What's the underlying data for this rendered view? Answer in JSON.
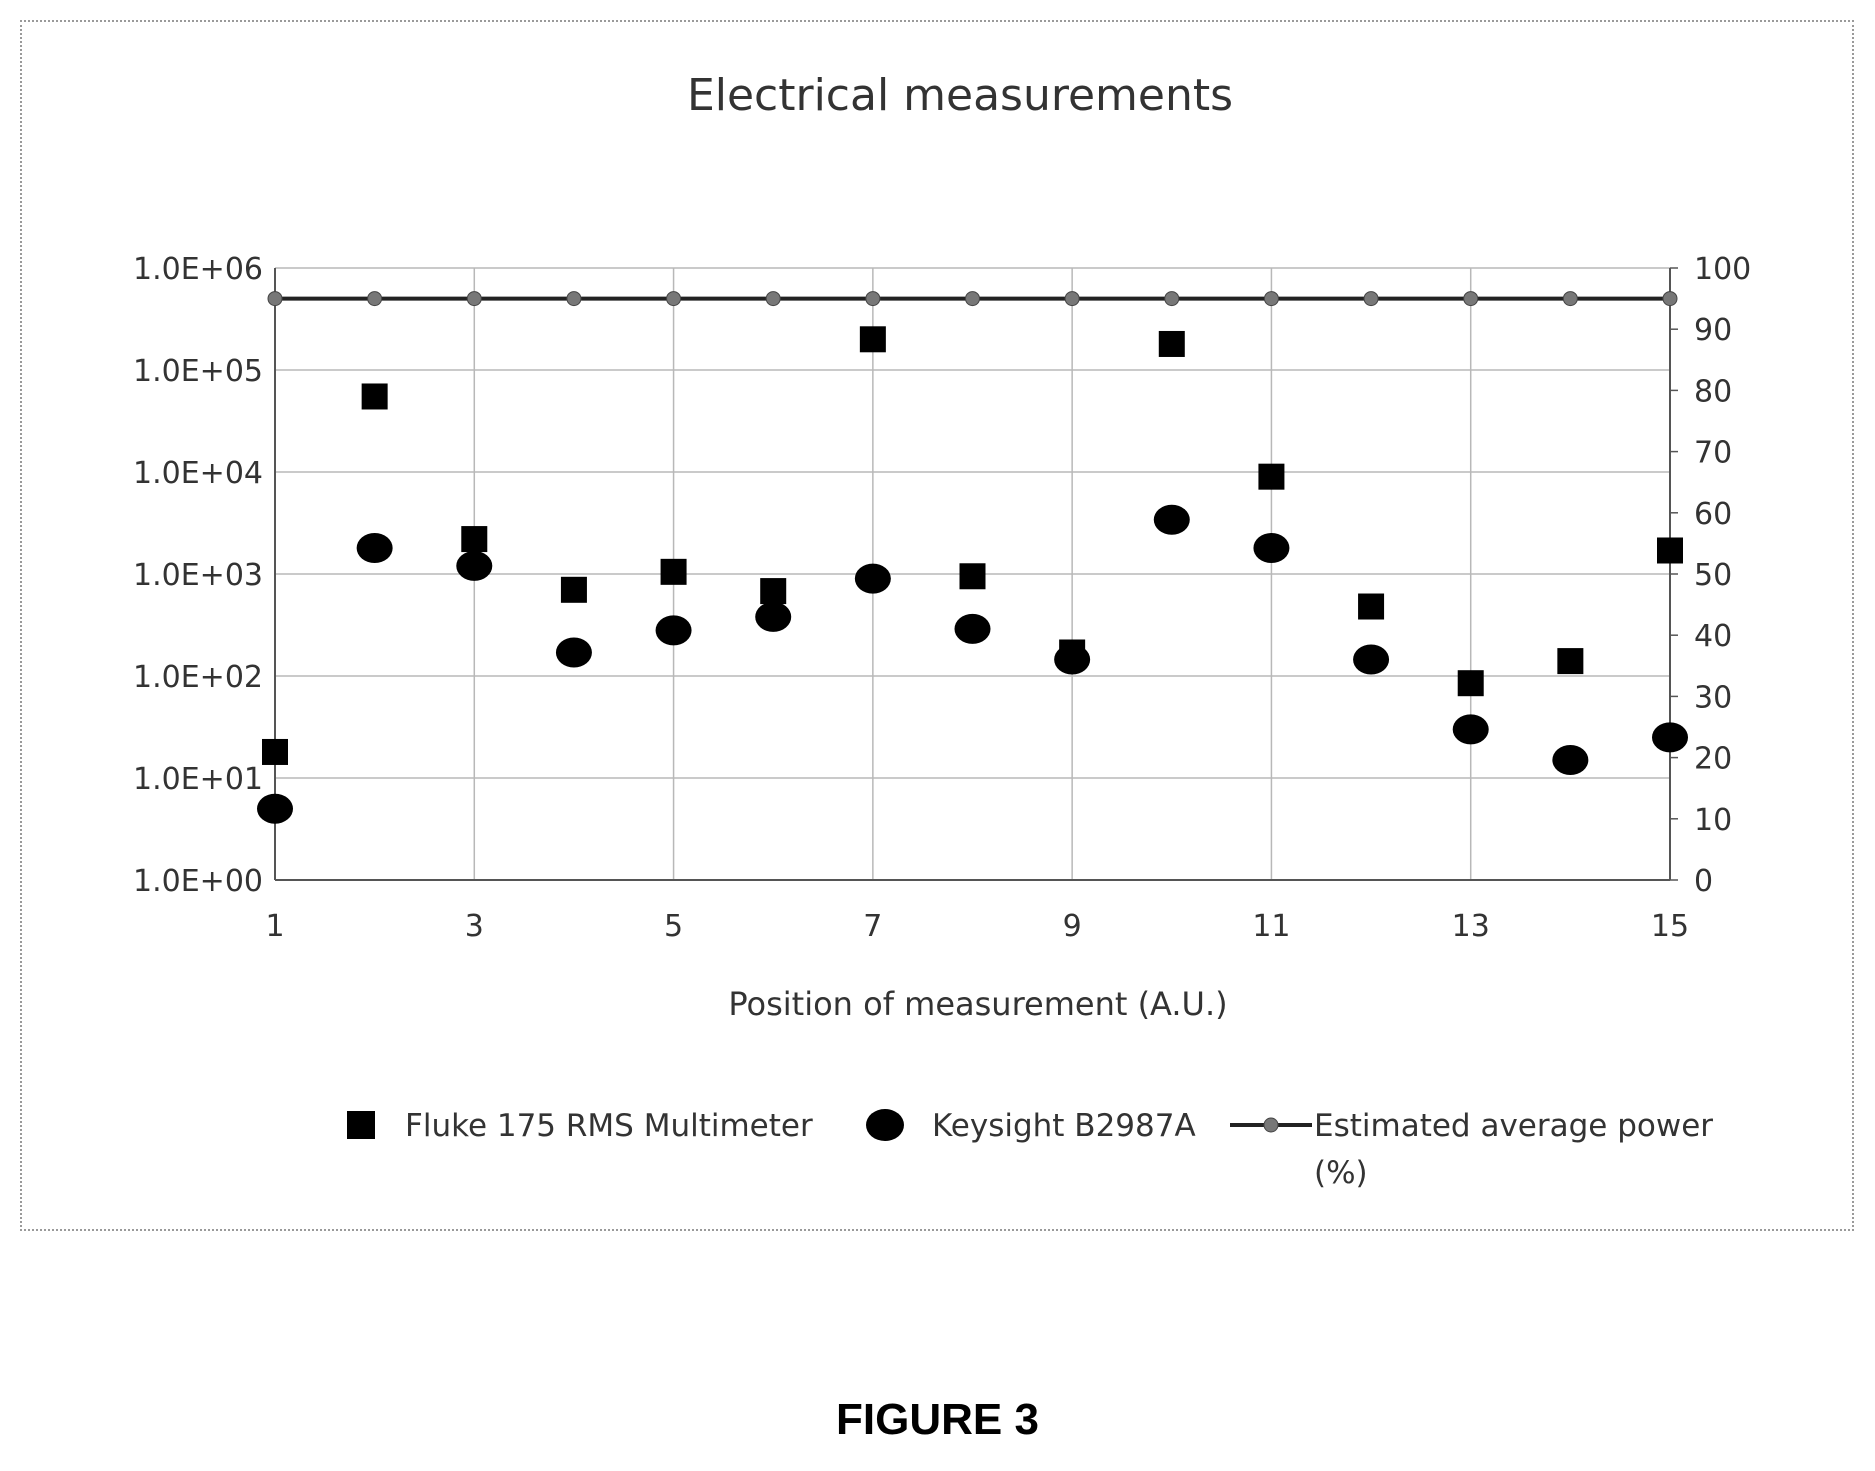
{
  "figure_caption": "FIGURE 3",
  "chart_data": {
    "type": "scatter",
    "title": "Electrical measurements",
    "xlabel": "Position of measurement (A.U.)",
    "x": [
      1,
      2,
      3,
      4,
      5,
      6,
      7,
      8,
      9,
      10,
      11,
      12,
      13,
      14,
      15
    ],
    "x_ticks": [
      1,
      3,
      5,
      7,
      9,
      11,
      13,
      15
    ],
    "x_tick_labels": [
      "1",
      "3",
      "5",
      "7",
      "9",
      "11",
      "13",
      "15"
    ],
    "xlim": [
      1,
      15
    ],
    "y_left": {
      "scale": "log",
      "ylim": [
        1,
        1000000
      ],
      "tick_values": [
        1,
        10,
        100,
        1000,
        10000,
        100000,
        1000000
      ],
      "tick_labels": [
        "1.0E+00",
        "1.0E+01",
        "1.0E+02",
        "1.0E+03",
        "1.0E+04",
        "1.0E+05",
        "1.0E+06"
      ]
    },
    "y_right": {
      "scale": "linear",
      "ylim": [
        0,
        100
      ],
      "tick_values": [
        0,
        10,
        20,
        30,
        40,
        50,
        60,
        70,
        80,
        90,
        100
      ],
      "tick_labels": [
        "0",
        "10",
        "20",
        "30",
        "40",
        "50",
        "60",
        "70",
        "80",
        "90",
        "100"
      ]
    },
    "grid": true,
    "legend_position": "bottom",
    "series": [
      {
        "name": "Fluke 175 RMS Multimeter",
        "axis": "left",
        "marker": "square",
        "color": "#000000",
        "values": [
          18,
          55000,
          2200,
          700,
          1050,
          680,
          200000,
          950,
          170,
          180000,
          9000,
          480,
          85,
          140,
          1700
        ]
      },
      {
        "name": "Keysight B2987A",
        "axis": "left",
        "marker": "circle",
        "color": "#000000",
        "values": [
          5,
          1800,
          1200,
          170,
          280,
          380,
          900,
          290,
          145,
          3400,
          1800,
          145,
          30,
          15,
          25
        ]
      },
      {
        "name": "Estimated average power (%)",
        "axis": "right",
        "marker": "line-dot",
        "color": "#222222",
        "point_color": "#777777",
        "values": [
          95,
          95,
          95,
          95,
          95,
          95,
          95,
          95,
          95,
          95,
          95,
          95,
          95,
          95,
          95
        ]
      }
    ]
  }
}
